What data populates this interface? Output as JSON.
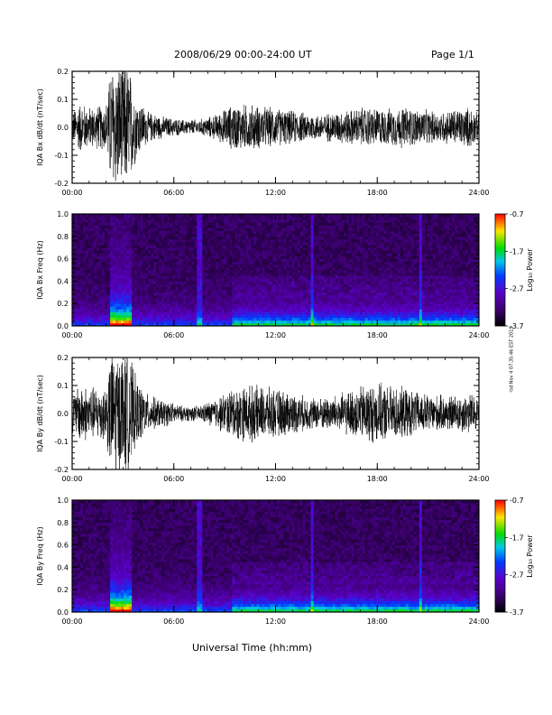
{
  "header": {
    "title": "2008/06/29  00:00-24:00 UT",
    "page": "Page 1/1"
  },
  "footer": {
    "xlabel": "Universal Time (hh:mm)"
  },
  "side_note": "rsd Nov 4 07:35:46 EST 2019",
  "colors": {
    "trace": "#000000",
    "axis": "#000000"
  },
  "chart_data": [
    {
      "type": "line",
      "ylabel": "IQA Bx dB/dt (nT/sec)",
      "ylim": [
        -0.2,
        0.2
      ],
      "yticks": [
        "-0.2",
        "-0.1",
        "0.0",
        "0.1",
        "0.2"
      ],
      "xticks": [
        "00:00",
        "06:00",
        "12:00",
        "18:00",
        "24:00"
      ],
      "xlim_hours": [
        0,
        24
      ],
      "amplitude_envelope": {
        "hours": [
          0,
          0.5,
          1,
          2,
          2.3,
          2.8,
          3.3,
          3.8,
          4.5,
          5.5,
          6.5,
          7.5,
          8.5,
          9.5,
          10.5,
          11.5,
          12.5,
          13.5,
          14.5,
          15.5,
          16.5,
          17.5,
          18.5,
          19.5,
          20.5,
          21.5,
          22.5,
          23.5,
          24
        ],
        "amp": [
          0.06,
          0.1,
          0.08,
          0.09,
          0.25,
          0.25,
          0.25,
          0.12,
          0.06,
          0.04,
          0.03,
          0.03,
          0.05,
          0.09,
          0.09,
          0.08,
          0.07,
          0.06,
          0.05,
          0.06,
          0.07,
          0.08,
          0.07,
          0.08,
          0.07,
          0.06,
          0.07,
          0.08,
          0.05
        ]
      }
    },
    {
      "type": "heatmap",
      "ylabel": "IQA Bx Freq (Hz)",
      "ylim": [
        0.0,
        1.0
      ],
      "yticks": [
        "0.0",
        "0.2",
        "0.4",
        "0.6",
        "0.8",
        "1.0"
      ],
      "xticks": [
        "00:00",
        "06:00",
        "12:00",
        "18:00",
        "24:00"
      ],
      "colorbar": {
        "label": "Log₁₀ Power",
        "ticks": [
          "-0.7",
          "-1.7",
          "-2.7",
          "-3.7"
        ],
        "range": [
          -3.7,
          -0.7
        ]
      }
    },
    {
      "type": "line",
      "ylabel": "IQA By dB/dt (nT/sec)",
      "ylim": [
        -0.2,
        0.2
      ],
      "yticks": [
        "-0.2",
        "-0.1",
        "0.0",
        "0.1",
        "0.2"
      ],
      "xticks": [
        "00:00",
        "06:00",
        "12:00",
        "18:00",
        "24:00"
      ],
      "xlim_hours": [
        0,
        24
      ],
      "amplitude_envelope": {
        "hours": [
          0,
          0.5,
          1,
          2,
          2.3,
          2.8,
          3.3,
          3.8,
          4.5,
          5.5,
          6.5,
          7.5,
          8.5,
          9.5,
          10.5,
          11.5,
          12.5,
          13.5,
          14.5,
          15.5,
          16.5,
          17.5,
          18.5,
          19.5,
          20.5,
          21.5,
          22.5,
          23.5,
          24
        ],
        "amp": [
          0.07,
          0.12,
          0.1,
          0.11,
          0.25,
          0.25,
          0.25,
          0.13,
          0.07,
          0.05,
          0.03,
          0.03,
          0.06,
          0.1,
          0.11,
          0.1,
          0.09,
          0.07,
          0.06,
          0.07,
          0.09,
          0.12,
          0.11,
          0.1,
          0.08,
          0.07,
          0.07,
          0.08,
          0.06
        ]
      }
    },
    {
      "type": "heatmap",
      "ylabel": "IQA By Freq (Hz)",
      "ylim": [
        0.0,
        1.0
      ],
      "yticks": [
        "0.0",
        "0.2",
        "0.4",
        "0.6",
        "0.8",
        "1.0"
      ],
      "xticks": [
        "00:00",
        "06:00",
        "12:00",
        "18:00",
        "24:00"
      ],
      "colorbar": {
        "label": "Log₁₀ Power",
        "ticks": [
          "-0.7",
          "-1.7",
          "-2.7",
          "-3.7"
        ],
        "range": [
          -3.7,
          -0.7
        ]
      }
    }
  ]
}
